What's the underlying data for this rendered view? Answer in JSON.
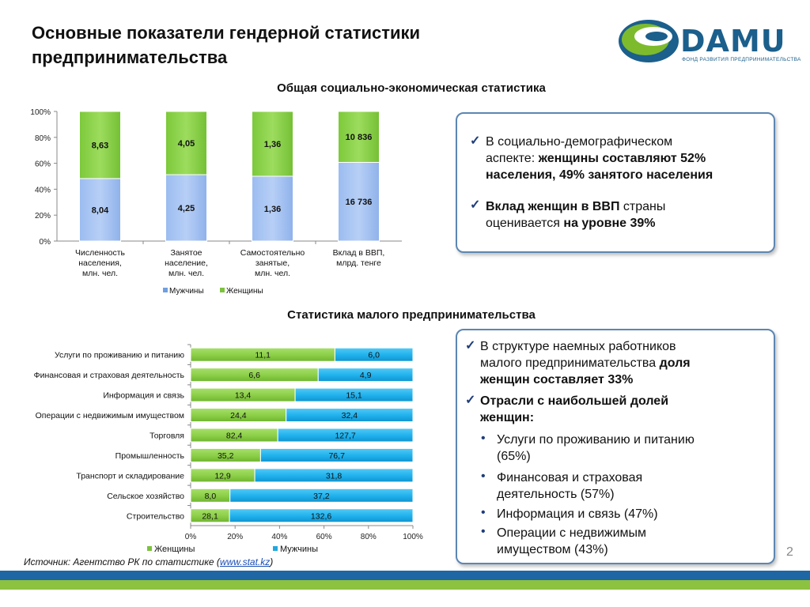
{
  "slide": {
    "title_line1": "Основные показатели гендерной статистики",
    "title_line2": "предпринимательства",
    "page_number": "2"
  },
  "logo": {
    "name": "DAMU",
    "subtitle": "ФОНД РАЗВИТИЯ ПРЕДПРИНИМАТЕЛЬСТВА",
    "colors": {
      "green": "#7dbb2d",
      "blue": "#1b5f8c"
    }
  },
  "section1": {
    "title": "Общая социально-экономическая статистика"
  },
  "section2": {
    "title": "Статистика малого предпринимательства"
  },
  "source": {
    "prefix": "Источник: Агентство РК по статистике (",
    "link": "www.stat.kz",
    "suffix": ")"
  },
  "box1": {
    "p1_a": "В социально-демографическом",
    "p1_b": "аспекте: ",
    "p1_b_bold": "женщины составляют 52%",
    "p1_c_bold": "населения, 49% занятого населения",
    "p2_a_bold": "Вклад женщин в ВВП",
    "p2_a": " страны",
    "p2_b": "оценивается ",
    "p2_b_bold": "на уровне 39%"
  },
  "box2": {
    "p1_a": "В структуре наемных работников",
    "p1_b": "малого предпринимательства ",
    "p1_b_bold": "доля",
    "p1_c_bold": "женщин составляет 33%",
    "p2_a_bold": "Отрасли с наибольшей долей",
    "p2_b_bold": "женщин:",
    "items": [
      {
        "line1": "Услуги по проживанию и питанию",
        "line2": "(65%)"
      },
      {
        "line1": "Финансовая и страховая",
        "line2": "деятельность (57%)"
      },
      {
        "line1": "Информация и связь (47%)",
        "line2": ""
      },
      {
        "line1": "Операции с недвижимым",
        "line2": "имуществом (43%)"
      }
    ]
  },
  "chart_data": [
    {
      "type": "bar",
      "stacked": "percent",
      "orientation": "vertical",
      "categories": [
        [
          "Численность",
          "населения,",
          "млн. чел."
        ],
        [
          "Занятое",
          "население,",
          "млн. чел."
        ],
        [
          "Самостоятельно",
          "занятые,",
          "млн. чел."
        ],
        [
          "Вклад в ВВП,",
          "млрд. тенге"
        ]
      ],
      "series": [
        {
          "name": "Мужчины",
          "values": [
            8.04,
            4.25,
            1.36,
            16736
          ],
          "labels": [
            "8,04",
            "4,25",
            "1,36",
            "16 736"
          ],
          "color": "#a4c2f4"
        },
        {
          "name": "Женщины",
          "values": [
            8.63,
            4.05,
            1.36,
            10836
          ],
          "labels": [
            "8,63",
            "4,05",
            "1,36",
            "10 836"
          ],
          "color": "#8fd14f"
        }
      ],
      "y_ticks": [
        "0%",
        "20%",
        "40%",
        "60%",
        "80%",
        "100%"
      ],
      "ylim": [
        0,
        100
      ],
      "legend": "bottom"
    },
    {
      "type": "bar",
      "stacked": "percent",
      "orientation": "horizontal",
      "categories": [
        "Услуги по проживанию и питанию",
        "Финансовая и страховая деятельность",
        "Информация и связь",
        "Операции с недвижимым имуществом",
        "Торговля",
        "Промышленность",
        "Транспорт и складирование",
        "Сельское хозяйство",
        "Строительство"
      ],
      "series": [
        {
          "name": "Женщины",
          "values": [
            11.1,
            6.6,
            13.4,
            24.4,
            82.4,
            35.2,
            12.9,
            8.0,
            28.1
          ],
          "labels": [
            "11,1",
            "6,6",
            "13,4",
            "24,4",
            "82,4",
            "35,2",
            "12,9",
            "8,0",
            "28,1"
          ],
          "color": "#8fd14f"
        },
        {
          "name": "Мужчины",
          "values": [
            6.0,
            4.9,
            15.1,
            32.4,
            127.7,
            76.7,
            31.8,
            37.2,
            132.6
          ],
          "labels": [
            "6,0",
            "4,9",
            "15,1",
            "32,4",
            "127,7",
            "76,7",
            "31,8",
            "37,2",
            "132,6"
          ],
          "color": "#1fb4ef"
        }
      ],
      "x_ticks": [
        "0%",
        "20%",
        "40%",
        "60%",
        "80%",
        "100%"
      ],
      "xlim": [
        0,
        100
      ],
      "legend": "bottom"
    }
  ]
}
